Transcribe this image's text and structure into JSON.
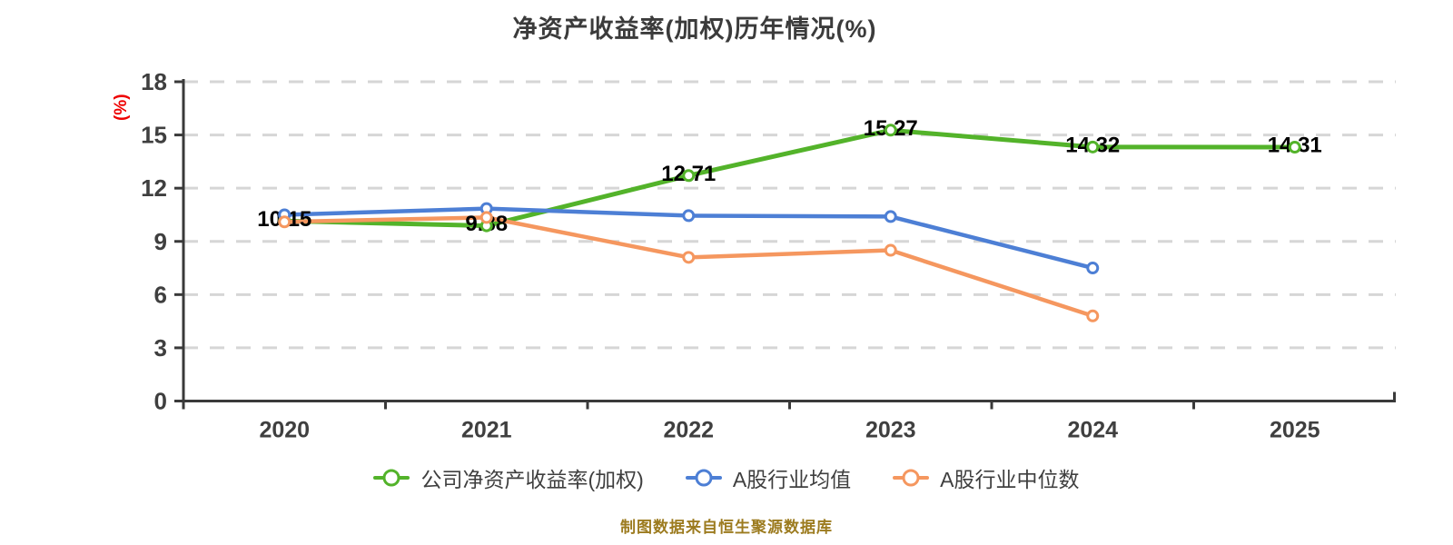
{
  "chart_data": {
    "type": "line",
    "title": "净资产收益率(加权)历年情况(%)",
    "ylabel": "(%)",
    "xlabel": "",
    "x": [
      "2020",
      "2021",
      "2022",
      "2023",
      "2024",
      "2025"
    ],
    "ylim": [
      0,
      18
    ],
    "yticks": [
      0,
      3,
      6,
      9,
      12,
      15,
      18
    ],
    "grid": "horizontal-dashed",
    "legend_position": "bottom",
    "series": [
      {
        "name": "公司净资产收益率(加权)",
        "color": "#53b32a",
        "values": [
          10.15,
          9.88,
          12.71,
          15.27,
          14.32,
          14.31
        ],
        "point_labels": [
          "10.15",
          "9.88",
          "12.71",
          "15.27",
          "14.32",
          "14.31"
        ]
      },
      {
        "name": "A股行业均值",
        "color": "#4d7fd5",
        "values": [
          10.5,
          10.85,
          10.45,
          10.4,
          7.5,
          null
        ],
        "point_labels": []
      },
      {
        "name": "A股行业中位数",
        "color": "#f5975f",
        "values": [
          10.1,
          10.35,
          8.1,
          8.5,
          4.8,
          null
        ],
        "point_labels": []
      }
    ],
    "footer": "制图数据来自恒生聚源数据库",
    "colors": {
      "axis": "#3a3a3a",
      "tick_text": "#3f3f3f",
      "grid": "#d6d6d6",
      "value_label": "#000000",
      "ylabel_red": "#ee0000",
      "footer_gold": "#9c7b1f",
      "background": "#ffffff"
    }
  }
}
